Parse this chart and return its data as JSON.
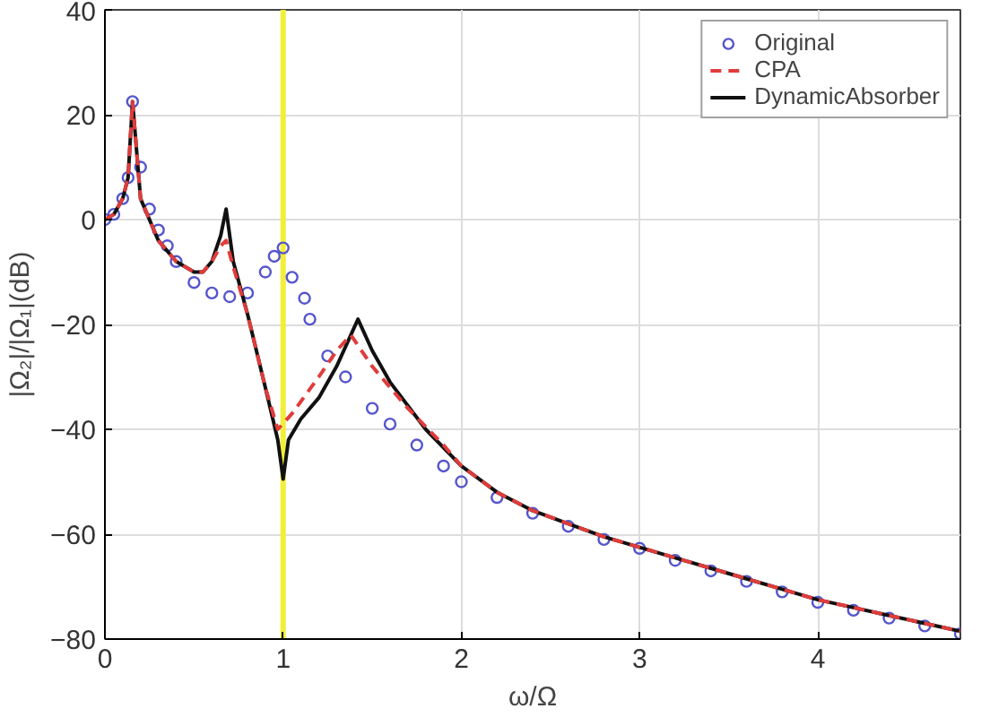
{
  "chart_data": {
    "type": "line",
    "xlabel": "ω/Ω",
    "ylabel": "|Ω₂|/|Ω₁|(dB)",
    "xlim": [
      0,
      4.8
    ],
    "xticks": [
      0,
      1,
      2,
      3,
      4
    ],
    "ylim": [
      -80,
      40
    ],
    "yticks": [
      -80,
      -60,
      -40,
      -20,
      0,
      20,
      40
    ],
    "grid": true,
    "legend": "top right",
    "ref_lines": [
      {
        "axis": "x",
        "value": 1,
        "label": null,
        "color": "#f2ee3a"
      }
    ],
    "series": [
      {
        "name": "Original",
        "type": "scatter",
        "marker": "circle",
        "color": "#5555cc",
        "x": [
          0,
          0.05,
          0.1,
          0.13,
          0.155,
          0.2,
          0.25,
          0.3,
          0.35,
          0.4,
          0.5,
          0.6,
          0.7,
          0.8,
          0.9,
          0.95,
          1.0,
          1.05,
          1.12,
          1.15,
          1.25,
          1.35,
          1.5,
          1.6,
          1.75,
          1.9,
          2.0,
          2.2,
          2.4,
          2.6,
          2.8,
          3.0,
          3.2,
          3.4,
          3.6,
          3.8,
          4.0,
          4.2,
          4.4,
          4.6,
          4.8
        ],
        "values": [
          0,
          1,
          4,
          8,
          22.5,
          10,
          2,
          -2,
          -5,
          -8,
          -12,
          -14,
          -14.7,
          -14,
          -10,
          -7,
          -5.4,
          -11,
          -15,
          -19,
          -26,
          -30,
          -36,
          -39,
          -43,
          -47,
          -50,
          -53,
          -56,
          -58.5,
          -61,
          -62.7,
          -65,
          -67,
          -69,
          -71,
          -73,
          -74.5,
          -76,
          -77.5,
          -79
        ]
      },
      {
        "name": "CPA",
        "type": "line",
        "line_style": "dashed",
        "color": "#e03c3c",
        "x": [
          0,
          0.05,
          0.1,
          0.13,
          0.155,
          0.2,
          0.3,
          0.4,
          0.5,
          0.55,
          0.6,
          0.65,
          0.68,
          0.72,
          0.8,
          0.9,
          0.97,
          1.05,
          1.2,
          1.3,
          1.38,
          1.5,
          1.7,
          1.9,
          2.0,
          2.2,
          2.4,
          2.6,
          2.8,
          3.0,
          3.2,
          3.4,
          3.6,
          3.8,
          4.0,
          4.2,
          4.4,
          4.6,
          4.8
        ],
        "values": [
          0,
          1,
          4,
          8,
          22.5,
          4,
          -4,
          -8,
          -10,
          -10,
          -8,
          -5,
          -4,
          -9,
          -18,
          -32,
          -40,
          -37,
          -30,
          -25,
          -22,
          -28,
          -36,
          -43,
          -47,
          -52,
          -55.5,
          -58,
          -60.5,
          -62.5,
          -64.5,
          -66.5,
          -68.5,
          -70.5,
          -72.5,
          -74,
          -75.5,
          -77,
          -78.5
        ]
      },
      {
        "name": "DynamicAbsorber",
        "type": "line",
        "line_style": "solid",
        "color": "#111111",
        "x": [
          0,
          0.05,
          0.1,
          0.13,
          0.155,
          0.2,
          0.3,
          0.4,
          0.5,
          0.55,
          0.6,
          0.65,
          0.68,
          0.72,
          0.8,
          0.9,
          0.97,
          1.0,
          1.03,
          1.1,
          1.2,
          1.3,
          1.42,
          1.5,
          1.6,
          1.8,
          2.0,
          2.2,
          2.4,
          2.6,
          2.8,
          3.0,
          3.2,
          3.4,
          3.6,
          3.8,
          4.0,
          4.2,
          4.4,
          4.6,
          4.8
        ],
        "values": [
          0,
          1,
          4,
          8,
          22.5,
          4,
          -4,
          -8,
          -10,
          -10,
          -8,
          -3,
          2,
          -8,
          -18,
          -32,
          -42,
          -49.5,
          -42,
          -38,
          -34,
          -28,
          -19,
          -25,
          -31,
          -40,
          -47,
          -52,
          -55.5,
          -58,
          -60.5,
          -62.5,
          -64.5,
          -66.5,
          -68.5,
          -70.5,
          -72.5,
          -74,
          -75.5,
          -77,
          -78.5
        ]
      }
    ]
  }
}
